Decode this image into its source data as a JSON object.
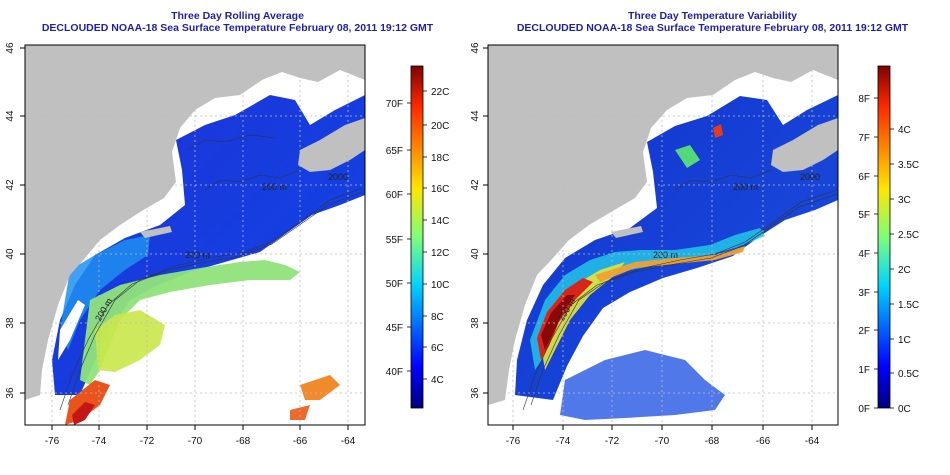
{
  "colors": {
    "land": "#c0c0c0",
    "nodata": "#ffffff",
    "title": "#1f1faa",
    "axis": "#000000",
    "grid": "#bdbdbd"
  },
  "panels": [
    {
      "title_line1": "Three Day Rolling Average",
      "title_line2": "DECLOUDED NOAA-18 Sea Surface Temperature February 08, 2011 19:12 GMT",
      "x_ticks": [
        "-76",
        "-74",
        "-72",
        "-70",
        "-68",
        "-66",
        "-64"
      ],
      "y_ticks": [
        "36",
        "38",
        "40",
        "42",
        "44",
        "46"
      ],
      "contour_labels": [
        "200 m",
        "200 m",
        "200 m",
        "2000"
      ],
      "colorbar": {
        "left_labels": [
          "22C",
          "20C",
          "18C",
          "16C",
          "14C",
          "12C",
          "10C",
          "8C",
          "6C",
          "4C"
        ],
        "right_labels": [
          "70F",
          "65F",
          "60F",
          "55F",
          "50F",
          "45F",
          "40F"
        ]
      }
    },
    {
      "title_line1": "Three Day Temperature Variability",
      "title_line2": "DECLOUDED NOAA-18 Sea Surface Temperature February 08, 2011 19:12 GMT",
      "x_ticks": [
        "-76",
        "-74",
        "-72",
        "-70",
        "-68",
        "-66",
        "-64"
      ],
      "y_ticks": [
        "36",
        "38",
        "40",
        "42",
        "44",
        "46"
      ],
      "contour_labels": [
        "200 m",
        "200 m",
        "200 m",
        "2000"
      ],
      "colorbar": {
        "left_labels": [
          "8F",
          "7F",
          "6F",
          "5F",
          "4F",
          "3F",
          "2F",
          "1F",
          "0F"
        ],
        "right_labels": [
          "4C",
          "3.5C",
          "3C",
          "2.5C",
          "2C",
          "1.5C",
          "1C",
          "0.5C",
          "0C"
        ]
      }
    }
  ]
}
